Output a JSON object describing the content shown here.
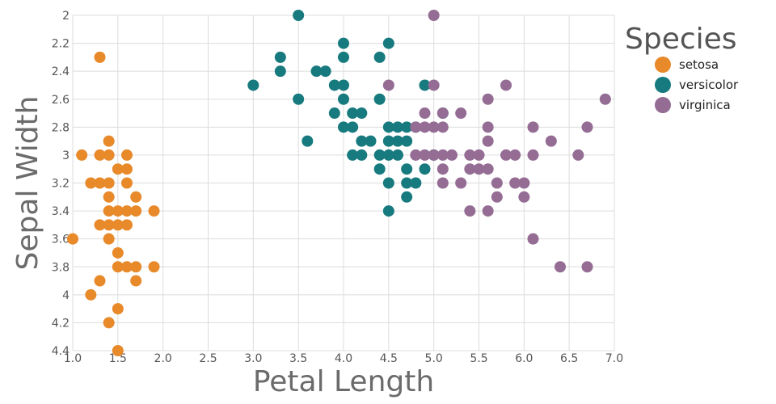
{
  "chart_data": {
    "type": "scatter",
    "xlabel": "Petal Length",
    "ylabel": "Sepal Width",
    "xlim": [
      1.0,
      7.0
    ],
    "ylim": [
      2.0,
      4.4
    ],
    "y_inverted": true,
    "x_ticks": [
      "1.0",
      "1.5",
      "2.0",
      "2.5",
      "3.0",
      "3.5",
      "4.0",
      "4.5",
      "5.0",
      "5.5",
      "6.0",
      "6.5",
      "7.0"
    ],
    "y_ticks": [
      "2",
      "2.2",
      "2.4",
      "2.6",
      "2.8",
      "3",
      "3.2",
      "3.4",
      "3.6",
      "3.8",
      "4",
      "4.2",
      "4.4"
    ],
    "grid": true,
    "legend": {
      "title": "Species",
      "position": "right"
    },
    "series": [
      {
        "name": "setosa",
        "color": "#e8892a",
        "points": [
          [
            1.0,
            3.6
          ],
          [
            1.1,
            3.0
          ],
          [
            1.2,
            3.2
          ],
          [
            1.2,
            4.0
          ],
          [
            1.3,
            2.3
          ],
          [
            1.3,
            3.0
          ],
          [
            1.3,
            3.2
          ],
          [
            1.3,
            3.5
          ],
          [
            1.3,
            3.9
          ],
          [
            1.4,
            2.9
          ],
          [
            1.4,
            3.0
          ],
          [
            1.4,
            3.2
          ],
          [
            1.4,
            3.3
          ],
          [
            1.4,
            3.4
          ],
          [
            1.4,
            3.5
          ],
          [
            1.4,
            3.6
          ],
          [
            1.4,
            4.2
          ],
          [
            1.5,
            3.1
          ],
          [
            1.5,
            3.4
          ],
          [
            1.5,
            3.5
          ],
          [
            1.5,
            3.7
          ],
          [
            1.5,
            3.8
          ],
          [
            1.5,
            4.1
          ],
          [
            1.5,
            4.4
          ],
          [
            1.6,
            3.0
          ],
          [
            1.6,
            3.1
          ],
          [
            1.6,
            3.2
          ],
          [
            1.6,
            3.4
          ],
          [
            1.6,
            3.5
          ],
          [
            1.6,
            3.8
          ],
          [
            1.7,
            3.3
          ],
          [
            1.7,
            3.4
          ],
          [
            1.7,
            3.8
          ],
          [
            1.7,
            3.9
          ],
          [
            1.9,
            3.4
          ],
          [
            1.9,
            3.8
          ]
        ]
      },
      {
        "name": "versicolor",
        "color": "#177a7e",
        "points": [
          [
            3.0,
            2.5
          ],
          [
            3.3,
            2.3
          ],
          [
            3.3,
            2.4
          ],
          [
            3.5,
            2.0
          ],
          [
            3.5,
            2.6
          ],
          [
            3.6,
            2.9
          ],
          [
            3.7,
            2.4
          ],
          [
            3.8,
            2.4
          ],
          [
            3.9,
            2.5
          ],
          [
            3.9,
            2.7
          ],
          [
            4.0,
            2.2
          ],
          [
            4.0,
            2.3
          ],
          [
            4.0,
            2.5
          ],
          [
            4.0,
            2.6
          ],
          [
            4.0,
            2.8
          ],
          [
            4.1,
            2.7
          ],
          [
            4.1,
            2.8
          ],
          [
            4.1,
            3.0
          ],
          [
            4.2,
            2.7
          ],
          [
            4.2,
            2.9
          ],
          [
            4.2,
            3.0
          ],
          [
            4.3,
            2.9
          ],
          [
            4.4,
            2.3
          ],
          [
            4.4,
            2.6
          ],
          [
            4.4,
            3.0
          ],
          [
            4.4,
            3.1
          ],
          [
            4.5,
            2.2
          ],
          [
            4.5,
            2.8
          ],
          [
            4.5,
            2.9
          ],
          [
            4.5,
            3.0
          ],
          [
            4.5,
            3.2
          ],
          [
            4.5,
            3.4
          ],
          [
            4.6,
            2.8
          ],
          [
            4.6,
            2.9
          ],
          [
            4.6,
            3.0
          ],
          [
            4.7,
            2.8
          ],
          [
            4.7,
            2.9
          ],
          [
            4.7,
            3.1
          ],
          [
            4.7,
            3.2
          ],
          [
            4.7,
            3.3
          ],
          [
            4.8,
            2.8
          ],
          [
            4.8,
            3.2
          ],
          [
            4.9,
            2.5
          ],
          [
            4.9,
            3.1
          ],
          [
            5.0,
            3.0
          ],
          [
            5.1,
            2.7
          ]
        ]
      },
      {
        "name": "virginica",
        "color": "#946c94",
        "points": [
          [
            4.5,
            2.5
          ],
          [
            4.8,
            2.8
          ],
          [
            4.8,
            3.0
          ],
          [
            4.9,
            2.7
          ],
          [
            4.9,
            2.8
          ],
          [
            4.9,
            3.0
          ],
          [
            5.0,
            2.0
          ],
          [
            5.0,
            2.5
          ],
          [
            5.0,
            2.8
          ],
          [
            5.0,
            3.0
          ],
          [
            5.1,
            2.7
          ],
          [
            5.1,
            2.8
          ],
          [
            5.1,
            3.0
          ],
          [
            5.1,
            3.1
          ],
          [
            5.1,
            3.2
          ],
          [
            5.2,
            3.0
          ],
          [
            5.3,
            2.7
          ],
          [
            5.3,
            3.2
          ],
          [
            5.4,
            3.0
          ],
          [
            5.4,
            3.1
          ],
          [
            5.4,
            3.4
          ],
          [
            5.5,
            3.0
          ],
          [
            5.5,
            3.1
          ],
          [
            5.6,
            2.6
          ],
          [
            5.6,
            2.8
          ],
          [
            5.6,
            2.9
          ],
          [
            5.6,
            3.1
          ],
          [
            5.6,
            3.4
          ],
          [
            5.7,
            3.2
          ],
          [
            5.7,
            3.3
          ],
          [
            5.8,
            2.5
          ],
          [
            5.8,
            3.0
          ],
          [
            5.9,
            3.0
          ],
          [
            5.9,
            3.2
          ],
          [
            6.0,
            3.2
          ],
          [
            6.0,
            3.3
          ],
          [
            6.1,
            2.8
          ],
          [
            6.1,
            3.0
          ],
          [
            6.1,
            3.6
          ],
          [
            6.3,
            2.9
          ],
          [
            6.4,
            3.8
          ],
          [
            6.6,
            3.0
          ],
          [
            6.7,
            2.8
          ],
          [
            6.7,
            3.8
          ],
          [
            6.9,
            2.6
          ]
        ]
      }
    ]
  }
}
